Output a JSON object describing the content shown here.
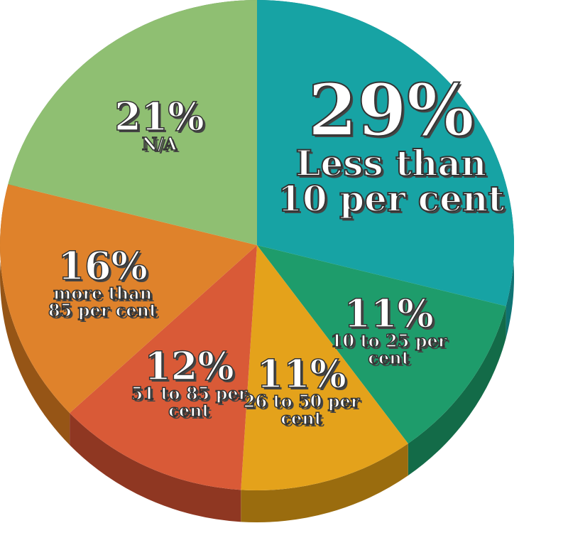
{
  "chart_data": {
    "type": "pie",
    "categories": [
      "Less than 10 per cent",
      "10 to 25 per cent",
      "26 to 50 per cent",
      "51 to 85 per cent",
      "more than 85 per cent",
      "N/A"
    ],
    "values": [
      29,
      11,
      11,
      12,
      16,
      21
    ],
    "value_labels": [
      "29%",
      "11%",
      "11%",
      "12%",
      "16%",
      "21%"
    ],
    "colors": [
      "#17a3a4",
      "#1e9c6b",
      "#e4a21b",
      "#d95a37",
      "#df822b",
      "#8fbf72"
    ],
    "side_colors": [
      "#0f7373",
      "#136b48",
      "#9a6c0e",
      "#8f3722",
      "#965516",
      "#5f8a4a"
    ]
  }
}
